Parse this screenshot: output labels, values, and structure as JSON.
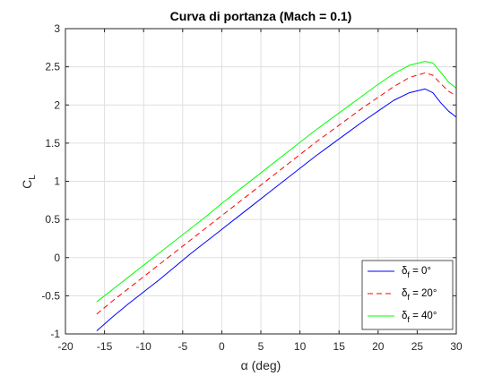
{
  "chart_data": {
    "type": "line",
    "title": "Curva di portanza (Mach = 0.1)",
    "xlabel": "α (deg)",
    "ylabel": {
      "main": "C",
      "sub": "L"
    },
    "xlim": [
      -20,
      30
    ],
    "ylim": [
      -1,
      3
    ],
    "xticks": [
      -20,
      -15,
      -10,
      -5,
      0,
      5,
      10,
      15,
      20,
      25,
      30
    ],
    "yticks": [
      -1,
      -0.5,
      0,
      0.5,
      1,
      1.5,
      2,
      2.5,
      3
    ],
    "grid": true,
    "legend_location": "bottom-right",
    "series": [
      {
        "name": "0°",
        "legend_prefix": "δ",
        "legend_sub": "f",
        "legend_suffix": " = 0°",
        "color": "#0000ff",
        "dash": "solid",
        "x": [
          -16,
          -14,
          -12,
          -10,
          -8,
          -6,
          -4,
          -2,
          0,
          2,
          4,
          6,
          8,
          10,
          12,
          14,
          16,
          18,
          20,
          22,
          24,
          26,
          27,
          28,
          29,
          30
        ],
        "y": [
          -0.96,
          -0.78,
          -0.61,
          -0.45,
          -0.29,
          -0.12,
          0.05,
          0.21,
          0.37,
          0.53,
          0.69,
          0.85,
          1.01,
          1.17,
          1.33,
          1.48,
          1.63,
          1.78,
          1.92,
          2.06,
          2.16,
          2.21,
          2.16,
          2.03,
          1.92,
          1.84
        ]
      },
      {
        "name": "20°",
        "legend_prefix": "δ",
        "legend_sub": "f",
        "legend_suffix": " = 20°",
        "color": "#ff0000",
        "dash": "dashed",
        "x": [
          -16,
          -14,
          -12,
          -10,
          -8,
          -6,
          -4,
          -2,
          0,
          2,
          4,
          6,
          8,
          10,
          12,
          14,
          16,
          18,
          20,
          22,
          24,
          26,
          27,
          28,
          29,
          30
        ],
        "y": [
          -0.74,
          -0.57,
          -0.41,
          -0.25,
          -0.09,
          0.07,
          0.23,
          0.39,
          0.55,
          0.71,
          0.87,
          1.03,
          1.19,
          1.35,
          1.51,
          1.66,
          1.81,
          1.96,
          2.1,
          2.24,
          2.36,
          2.42,
          2.39,
          2.28,
          2.18,
          2.12
        ]
      },
      {
        "name": "40°",
        "legend_prefix": "δ",
        "legend_sub": "f",
        "legend_suffix": " = 40°",
        "color": "#00ff00",
        "dash": "solid",
        "x": [
          -16,
          -14,
          -12,
          -10,
          -8,
          -6,
          -4,
          -2,
          0,
          2,
          4,
          6,
          8,
          10,
          12,
          14,
          16,
          18,
          20,
          22,
          24,
          26,
          27,
          28,
          29,
          30
        ],
        "y": [
          -0.58,
          -0.42,
          -0.26,
          -0.1,
          0.06,
          0.22,
          0.38,
          0.54,
          0.71,
          0.87,
          1.03,
          1.19,
          1.35,
          1.51,
          1.67,
          1.82,
          1.97,
          2.12,
          2.27,
          2.41,
          2.52,
          2.57,
          2.55,
          2.43,
          2.3,
          2.22
        ]
      }
    ]
  }
}
